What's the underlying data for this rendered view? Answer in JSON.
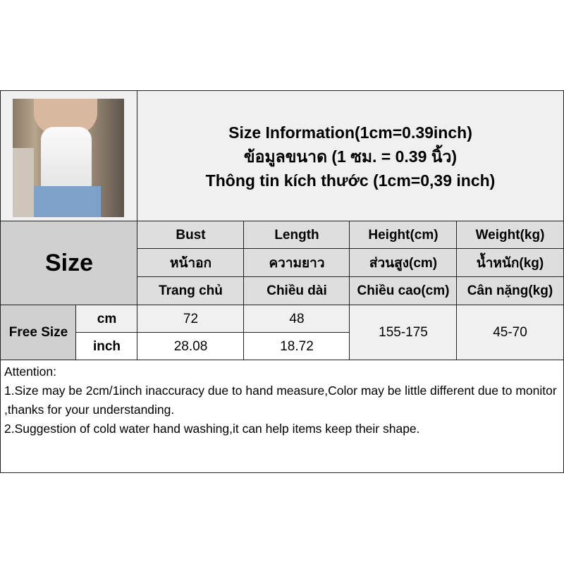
{
  "header": {
    "title_en": "Size Information(1cm=0.39inch)",
    "title_th": "ข้อมูลขนาด (1 ซม. = 0.39 นิ้ว)",
    "title_vi": "Thông tin kích thước (1cm=0,39 inch)"
  },
  "table": {
    "size_label": "Size",
    "columns": [
      {
        "en": "Bust",
        "th": "หน้าอก",
        "vi": "Trang chủ"
      },
      {
        "en": "Length",
        "th": "ความยาว",
        "vi": "Chiều dài"
      },
      {
        "en": "Height(cm)",
        "th": "ส่วนสูง(cm)",
        "vi": "Chiều cao(cm)"
      },
      {
        "en": "Weight(kg)",
        "th": "น้ำหนัก(kg)",
        "vi": "Cân nặng(kg)"
      }
    ],
    "row_label": "Free Size",
    "unit_cm": "cm",
    "unit_inch": "inch",
    "bust_cm": "72",
    "length_cm": "48",
    "bust_inch": "28.08",
    "length_inch": "18.72",
    "height": "155-175",
    "weight": "45-70"
  },
  "notes": {
    "heading": "Attention:",
    "line1": "1.Size may be 2cm/1inch inaccuracy due to hand measure,Color may be little different due to monitor ,thanks for your understanding.",
    "line2": "2.Suggestion of cold water hand washing,it can help items keep their shape."
  }
}
